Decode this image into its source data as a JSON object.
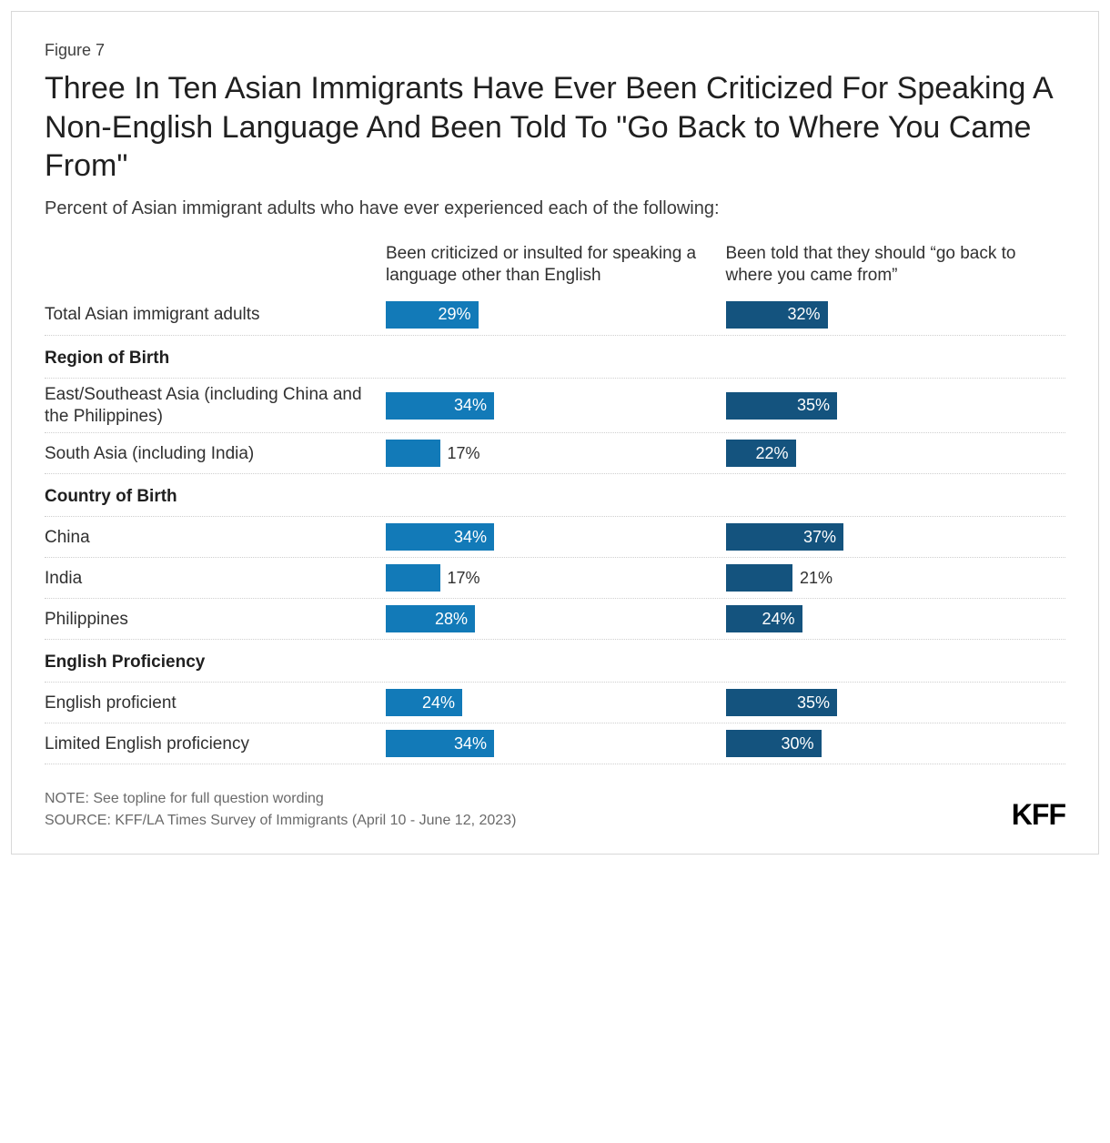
{
  "figure_label": "Figure 7",
  "title": "Three In Ten Asian Immigrants Have Ever Been Criticized For Speaking A Non-English Language And Been Told To \"Go Back to Where You Came From\"",
  "subtitle": "Percent of Asian immigrant adults who have ever experienced each of the following:",
  "series": [
    {
      "key": "criticized",
      "header": "Been criticized or insulted for speaking a language other than English",
      "color": "#127ab8"
    },
    {
      "key": "go_back",
      "header": "Been told that they should “go back to where you came from”",
      "color": "#14537e"
    }
  ],
  "bar_max_pct": 100,
  "bar_scale": 3.5,
  "label_inside_threshold": 22,
  "rows": [
    {
      "type": "data",
      "label": "Total Asian immigrant adults",
      "values": {
        "criticized": 29,
        "go_back": 32
      }
    },
    {
      "type": "group",
      "label": "Region of Birth"
    },
    {
      "type": "data",
      "label": "East/Southeast Asia (including China and the Philippines)",
      "values": {
        "criticized": 34,
        "go_back": 35
      }
    },
    {
      "type": "data",
      "label": "South Asia (including India)",
      "values": {
        "criticized": 17,
        "go_back": 22
      }
    },
    {
      "type": "group",
      "label": "Country of Birth"
    },
    {
      "type": "data",
      "label": "China",
      "values": {
        "criticized": 34,
        "go_back": 37
      }
    },
    {
      "type": "data",
      "label": "India",
      "values": {
        "criticized": 17,
        "go_back": 21
      }
    },
    {
      "type": "data",
      "label": "Philippines",
      "values": {
        "criticized": 28,
        "go_back": 24
      }
    },
    {
      "type": "group",
      "label": "English Proficiency"
    },
    {
      "type": "data",
      "label": "English proficient",
      "values": {
        "criticized": 24,
        "go_back": 35
      }
    },
    {
      "type": "data",
      "label": "Limited English proficiency",
      "values": {
        "criticized": 34,
        "go_back": 30
      }
    }
  ],
  "footer": {
    "note": "NOTE: See topline for full question wording",
    "source": "SOURCE: KFF/LA Times Survey of Immigrants (April 10 - June 12, 2023)"
  },
  "logo_text": "KFF",
  "colors": {
    "border": "#d8d8d8",
    "text": "#303030",
    "title": "#202020",
    "footer_text": "#6a6a6a",
    "divider": "#cfcfcf",
    "background": "#ffffff"
  },
  "typography": {
    "title_fontsize": 34,
    "subtitle_fontsize": 20,
    "label_fontsize": 19,
    "bar_label_fontsize": 18,
    "footer_fontsize": 16,
    "logo_fontsize": 32
  }
}
